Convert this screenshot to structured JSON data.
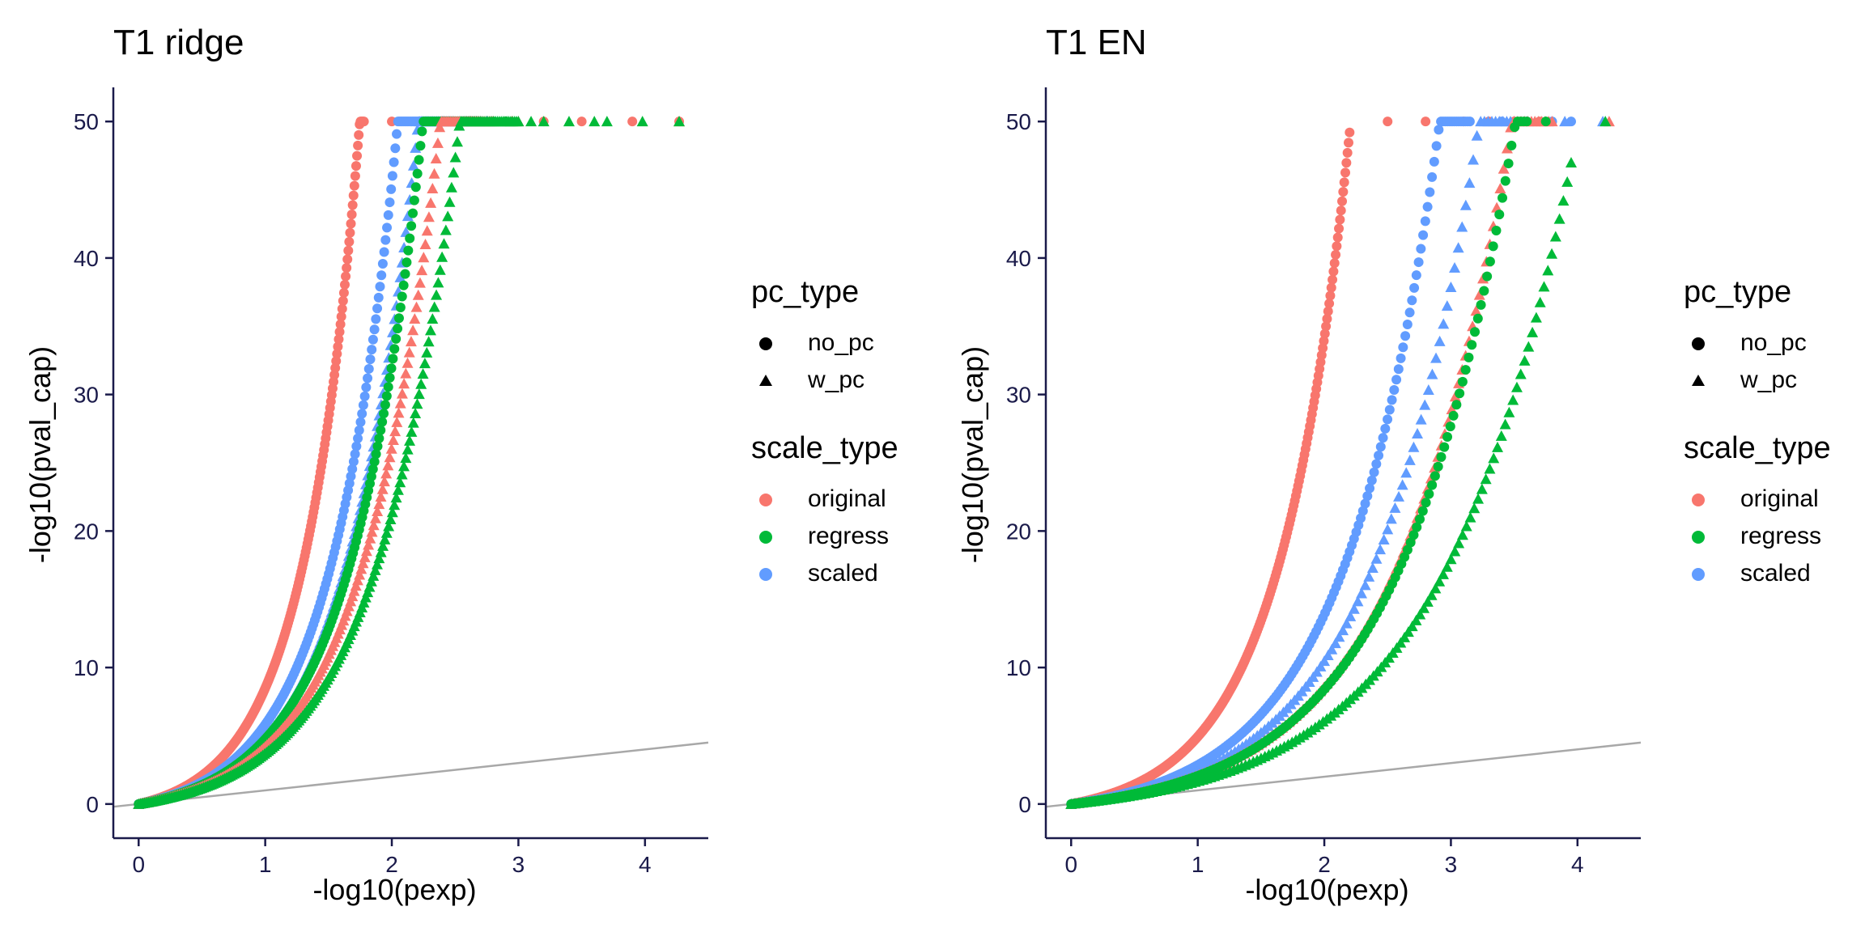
{
  "chart_data": [
    {
      "type": "scatter",
      "title": "T1 ridge",
      "xlabel": "-log10(pexp)",
      "ylabel": "-log10(pval_cap)",
      "xlim": [
        -0.2,
        4.5
      ],
      "ylim": [
        -2.5,
        52.5
      ],
      "xticks": [
        "0",
        "1",
        "2",
        "3",
        "4"
      ],
      "yticks": [
        "0",
        "10",
        "20",
        "30",
        "40",
        "50"
      ],
      "reference_line": {
        "x": [
          -0.2,
          4.5
        ],
        "y": [
          -0.2,
          4.5
        ]
      },
      "grid": false,
      "legend_position": "right",
      "series": [
        {
          "scale_type": "original",
          "pc_type": "no_pc",
          "shape": "circle",
          "color": "#F8766D",
          "curve": {
            "alpha": 2.25,
            "k": 1.0,
            "x_cap": 1.78
          },
          "n": 260,
          "tail": [
            [
              2.0,
              50
            ],
            [
              2.3,
              50
            ],
            [
              2.6,
              50
            ],
            [
              2.9,
              50
            ],
            [
              3.2,
              50
            ],
            [
              3.5,
              50
            ],
            [
              3.9,
              50
            ],
            [
              4.27,
              50
            ]
          ]
        },
        {
          "scale_type": "scaled",
          "pc_type": "no_pc",
          "shape": "circle",
          "color": "#619CFF",
          "curve": {
            "alpha": 1.92,
            "k": 1.0,
            "x_cap": 2.4
          },
          "n": 220,
          "tail": [
            [
              2.6,
              50
            ],
            [
              2.7,
              50
            ]
          ]
        },
        {
          "scale_type": "scaled",
          "pc_type": "w_pc",
          "shape": "triangle",
          "color": "#619CFF",
          "curve": {
            "alpha": 1.78,
            "k": 1.0,
            "x_cap": 2.7
          },
          "n": 180,
          "tail": [
            [
              2.75,
              50
            ]
          ]
        },
        {
          "scale_type": "regress",
          "pc_type": "no_pc",
          "shape": "circle",
          "color": "#00BA38",
          "curve": {
            "alpha": 1.75,
            "k": 1.0,
            "x_cap": 2.65
          },
          "n": 220,
          "tail": [
            [
              2.8,
              50
            ],
            [
              2.9,
              50
            ]
          ]
        },
        {
          "scale_type": "original",
          "pc_type": "w_pc",
          "shape": "triangle",
          "color": "#F8766D",
          "curve": {
            "alpha": 1.65,
            "k": 1.0,
            "x_cap": 2.8
          },
          "n": 200,
          "tail": [
            [
              2.95,
              50
            ],
            [
              3.0,
              50
            ],
            [
              4.27,
              50
            ]
          ]
        },
        {
          "scale_type": "regress",
          "pc_type": "w_pc",
          "shape": "triangle",
          "color": "#00BA38",
          "curve": {
            "alpha": 1.55,
            "k": 1.0,
            "x_cap": 3.0
          },
          "n": 200,
          "tail": [
            [
              3.1,
              50
            ],
            [
              3.2,
              50
            ],
            [
              3.4,
              50
            ],
            [
              3.6,
              50
            ],
            [
              3.7,
              50
            ],
            [
              3.98,
              50
            ],
            [
              4.27,
              50
            ]
          ]
        }
      ]
    },
    {
      "type": "scatter",
      "title": "T1 EN",
      "xlabel": "-log10(pexp)",
      "ylabel": "-log10(pval_cap)",
      "xlim": [
        -0.2,
        4.5
      ],
      "ylim": [
        -2.5,
        52.5
      ],
      "xticks": [
        "0",
        "1",
        "2",
        "3",
        "4"
      ],
      "yticks": [
        "0",
        "10",
        "20",
        "30",
        "40",
        "50"
      ],
      "reference_line": {
        "x": [
          -0.2,
          4.5
        ],
        "y": [
          -0.2,
          4.5
        ]
      },
      "grid": false,
      "legend_position": "right",
      "series": [
        {
          "scale_type": "original",
          "pc_type": "no_pc",
          "shape": "circle",
          "color": "#F8766D",
          "curve": {
            "alpha": 1.78,
            "k": 1.0,
            "x_cap": 2.2
          },
          "n": 260,
          "tail": [
            [
              2.5,
              50
            ],
            [
              2.8,
              50
            ],
            [
              3.1,
              50
            ],
            [
              3.3,
              50
            ],
            [
              3.5,
              50
            ],
            [
              3.7,
              50
            ]
          ]
        },
        {
          "scale_type": "scaled",
          "pc_type": "no_pc",
          "shape": "circle",
          "color": "#619CFF",
          "curve": {
            "alpha": 1.35,
            "k": 1.0,
            "x_cap": 3.15
          },
          "n": 180,
          "tail": [
            [
              3.4,
              50
            ],
            [
              3.6,
              50
            ],
            [
              3.8,
              50
            ],
            [
              3.95,
              50
            ]
          ]
        },
        {
          "scale_type": "scaled",
          "pc_type": "w_pc",
          "shape": "triangle",
          "color": "#619CFF",
          "curve": {
            "alpha": 1.22,
            "k": 1.0,
            "x_cap": 3.5
          },
          "n": 120,
          "tail": [
            [
              3.9,
              50
            ],
            [
              4.2,
              50
            ]
          ]
        },
        {
          "scale_type": "original",
          "pc_type": "w_pc",
          "shape": "triangle",
          "color": "#F8766D",
          "curve": {
            "alpha": 1.13,
            "k": 1.0,
            "x_cap": 3.8
          },
          "n": 140,
          "tail": [
            [
              4.25,
              50
            ]
          ]
        },
        {
          "scale_type": "regress",
          "pc_type": "no_pc",
          "shape": "circle",
          "color": "#00BA38",
          "curve": {
            "alpha": 1.12,
            "k": 1.0,
            "x_cap": 3.6
          },
          "n": 150,
          "tail": [
            [
              3.75,
              50
            ]
          ]
        },
        {
          "scale_type": "regress",
          "pc_type": "w_pc",
          "shape": "triangle",
          "color": "#00BA38",
          "curve": {
            "alpha": 0.98,
            "k": 1.0,
            "x_cap": 3.95
          },
          "n": 130,
          "tail": [
            [
              4.22,
              50
            ]
          ]
        }
      ]
    }
  ],
  "legend": {
    "pc_type": {
      "title": "pc_type",
      "items": [
        {
          "label": "no_pc",
          "shape": "circle"
        },
        {
          "label": "w_pc",
          "shape": "triangle"
        }
      ]
    },
    "scale_type": {
      "title": "scale_type",
      "items": [
        {
          "label": "original",
          "color": "#F8766D"
        },
        {
          "label": "regress",
          "color": "#00BA38"
        },
        {
          "label": "scaled",
          "color": "#619CFF"
        }
      ]
    }
  }
}
